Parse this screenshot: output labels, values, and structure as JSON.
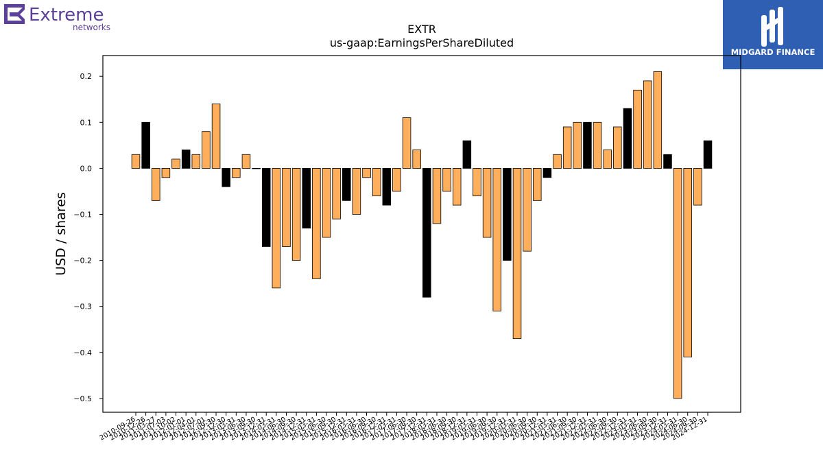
{
  "brand_left": {
    "name": "Extreme",
    "sub": "networks",
    "color": "#5b3f99"
  },
  "brand_right": {
    "name": "MIDGARD FINANCE",
    "bg": "#2f5fb3"
  },
  "colors": {
    "accent": "#ffae5c",
    "highlight": "#000000"
  },
  "chart_data": {
    "type": "bar",
    "title": "EXTR",
    "subtitle": "us-gaap:EarningsPerShareDiluted",
    "ylabel": "USD / shares",
    "xlabel": "",
    "ylim": [
      -0.53,
      0.245
    ],
    "yticks": [
      -0.5,
      -0.4,
      -0.3,
      -0.2,
      -0.1,
      0.0,
      0.1,
      0.2
    ],
    "ytick_labels": [
      "−0.5",
      "−0.4",
      "−0.3",
      "−0.2",
      "−0.1",
      "0.0",
      "0.1",
      "0.2"
    ],
    "grid": false,
    "categories": [
      "2010-09-26",
      "2010-12-26",
      "2011-03-27",
      "2011-07-03",
      "2011-10-02",
      "2012-01-01",
      "2012-04-01",
      "2012-07-01",
      "2012-09-30",
      "2012-12-30",
      "2013-03-31",
      "2013-06-30",
      "2013-09-30",
      "2013-12-31",
      "2014-03-31",
      "2014-06-30",
      "2014-09-30",
      "2014-12-31",
      "2015-03-31",
      "2015-06-30",
      "2015-09-30",
      "2015-12-31",
      "2016-03-31",
      "2016-06-30",
      "2016-09-30",
      "2016-12-31",
      "2017-03-31",
      "2017-06-30",
      "2017-09-30",
      "2017-12-31",
      "2018-03-31",
      "2018-06-30",
      "2018-09-30",
      "2018-12-31",
      "2019-03-31",
      "2019-06-30",
      "2019-09-30",
      "2019-12-31",
      "2020-03-31",
      "2020-06-30",
      "2020-09-30",
      "2020-12-31",
      "2021-03-31",
      "2021-06-30",
      "2021-09-30",
      "2021-12-31",
      "2022-03-31",
      "2022-06-30",
      "2022-09-30",
      "2022-12-31",
      "2023-03-31",
      "2023-06-30",
      "2023-09-30",
      "2023-12-31",
      "2024-03-31",
      "2024-06-30",
      "2024-09-30",
      "2024-12-31"
    ],
    "values": [
      0.03,
      0.1,
      -0.07,
      -0.02,
      0.02,
      0.04,
      0.03,
      0.08,
      0.14,
      -0.04,
      -0.02,
      0.03,
      0.0,
      -0.17,
      -0.26,
      -0.17,
      -0.2,
      -0.13,
      -0.24,
      -0.15,
      -0.11,
      -0.07,
      -0.1,
      -0.02,
      -0.06,
      -0.08,
      -0.05,
      0.11,
      0.04,
      -0.28,
      -0.12,
      -0.05,
      -0.08,
      0.06,
      -0.06,
      -0.15,
      -0.31,
      -0.2,
      -0.37,
      -0.18,
      -0.07,
      -0.02,
      0.03,
      0.09,
      0.1,
      0.1,
      0.1,
      0.04,
      0.09,
      0.13,
      0.17,
      0.19,
      0.21,
      0.03,
      -0.5,
      -0.41,
      -0.08,
      0.06
    ],
    "highlight": [
      false,
      true,
      false,
      false,
      false,
      true,
      false,
      false,
      false,
      true,
      false,
      false,
      false,
      true,
      false,
      false,
      false,
      true,
      false,
      false,
      false,
      true,
      false,
      false,
      false,
      true,
      false,
      false,
      false,
      true,
      false,
      false,
      false,
      true,
      false,
      false,
      false,
      true,
      false,
      false,
      false,
      true,
      false,
      false,
      false,
      true,
      false,
      false,
      false,
      true,
      false,
      false,
      false,
      true,
      false,
      false,
      false,
      true
    ]
  }
}
